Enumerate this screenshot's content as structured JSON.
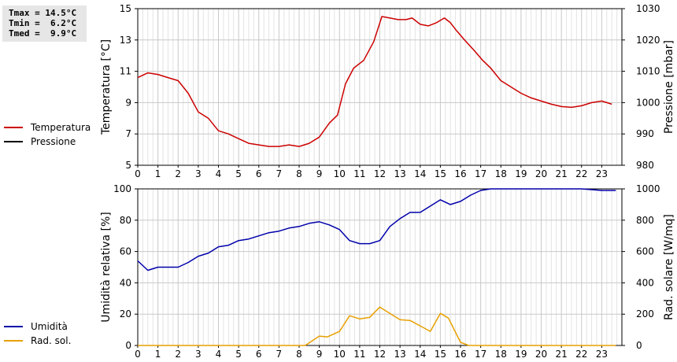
{
  "stats": {
    "tmax": "Tmax = 14.5°C",
    "tmin": "Tmin =  6.2°C",
    "tmed": "Tmed =  9.9°C"
  },
  "legend_top": [
    {
      "label": "Temperatura",
      "color": "#cc0000"
    },
    {
      "label": "Pressione",
      "color": "#000000"
    }
  ],
  "legend_bottom": [
    {
      "label": "Umidità",
      "color": "#0000aa"
    },
    {
      "label": "Rad. sol.",
      "color": "#e8a000"
    }
  ],
  "chart_data": [
    {
      "type": "line",
      "ylabel": "Temperatura [°C]",
      "y2label": "Pressione [mbar]",
      "xlim": [
        0,
        24
      ],
      "ylim": [
        5,
        15
      ],
      "y2lim": [
        980,
        1030
      ],
      "yticks": [
        "5",
        "7",
        "9",
        "11",
        "13",
        "15"
      ],
      "y2ticks": [
        "980",
        "990",
        "1000",
        "1010",
        "1020",
        "1030"
      ],
      "xticks": [
        "0",
        "1",
        "2",
        "3",
        "4",
        "5",
        "6",
        "7",
        "8",
        "9",
        "10",
        "11",
        "12",
        "13",
        "14",
        "15",
        "16",
        "17",
        "18",
        "19",
        "20",
        "21",
        "22",
        "23"
      ],
      "grid": true,
      "series": [
        {
          "name": "Temperatura",
          "color": "#cc0000",
          "x": [
            0,
            0.5,
            1,
            1.5,
            2,
            2.5,
            3,
            3.5,
            4,
            4.5,
            5,
            5.5,
            6,
            6.5,
            7,
            7.5,
            8,
            8.5,
            9,
            9.5,
            9.9,
            10.3,
            10.7,
            11.2,
            11.7,
            12.1,
            12.5,
            12.9,
            13.3,
            13.6,
            14,
            14.4,
            14.8,
            15.2,
            15.5,
            15.8,
            16.2,
            16.7,
            17.1,
            17.5,
            18,
            18.5,
            19,
            19.5,
            20,
            20.5,
            21,
            21.5,
            22,
            22.5,
            23,
            23.5
          ],
          "y": [
            10.6,
            10.9,
            10.8,
            10.6,
            10.4,
            9.6,
            8.4,
            8.0,
            7.2,
            7.0,
            6.7,
            6.4,
            6.3,
            6.2,
            6.2,
            6.3,
            6.2,
            6.4,
            6.8,
            7.7,
            8.2,
            10.2,
            11.2,
            11.7,
            12.9,
            14.5,
            14.4,
            14.3,
            14.3,
            14.4,
            14.0,
            13.9,
            14.1,
            14.4,
            14.1,
            13.6,
            13.0,
            12.3,
            11.7,
            11.2,
            10.4,
            10.0,
            9.6,
            9.3,
            9.1,
            8.9,
            8.75,
            8.7,
            8.8,
            9.0,
            9.1,
            8.9
          ]
        }
      ]
    },
    {
      "type": "line",
      "ylabel": "Umidità relativa [%]",
      "y2label": "Rad. solare [W/mq]",
      "xlim": [
        0,
        24
      ],
      "ylim": [
        0,
        100
      ],
      "y2lim": [
        0,
        1000
      ],
      "yticks": [
        "0",
        "20",
        "40",
        "60",
        "80",
        "100"
      ],
      "y2ticks": [
        "0",
        "200",
        "400",
        "600",
        "800",
        "1000"
      ],
      "xticks": [
        "0",
        "1",
        "2",
        "3",
        "4",
        "5",
        "6",
        "7",
        "8",
        "9",
        "10",
        "11",
        "12",
        "13",
        "14",
        "15",
        "16",
        "17",
        "18",
        "19",
        "20",
        "21",
        "22",
        "23"
      ],
      "grid": true,
      "series": [
        {
          "name": "Umidità",
          "color": "#0000aa",
          "x": [
            0,
            0.5,
            1,
            1.5,
            2,
            2.5,
            3,
            3.5,
            4,
            4.5,
            5,
            5.5,
            6,
            6.5,
            7,
            7.5,
            8,
            8.5,
            9,
            9.5,
            10,
            10.5,
            11,
            11.5,
            12,
            12.5,
            13,
            13.5,
            14,
            14.5,
            15,
            15.5,
            16,
            16.5,
            17,
            17.5,
            18,
            19,
            20,
            21,
            22,
            23,
            23.7
          ],
          "y": [
            54,
            48,
            50,
            50,
            50,
            53,
            57,
            59,
            63,
            64,
            67,
            68,
            70,
            72,
            73,
            75,
            76,
            78,
            79,
            77,
            74,
            67,
            65,
            65,
            67,
            76,
            81,
            85,
            85,
            89,
            93,
            90,
            92,
            96,
            99,
            100,
            100,
            100,
            100,
            100,
            100,
            99,
            99
          ]
        },
        {
          "name": "Rad. sol.",
          "color": "#e8a000",
          "x": [
            0,
            1,
            2,
            3,
            4,
            5,
            6,
            7,
            8,
            8.3,
            9,
            9.4,
            10,
            10.5,
            11,
            11.5,
            12,
            12.5,
            13,
            13.5,
            14,
            14.5,
            15,
            15.4,
            16,
            16.4,
            17,
            18,
            19,
            20,
            21,
            22,
            23,
            23.7
          ],
          "y": [
            0,
            0,
            0,
            0,
            0,
            0,
            0,
            0,
            0,
            0,
            60,
            55,
            90,
            190,
            170,
            180,
            245,
            205,
            165,
            160,
            125,
            90,
            205,
            175,
            20,
            0,
            0,
            0,
            0,
            0,
            0,
            0,
            0,
            0
          ]
        }
      ]
    }
  ]
}
